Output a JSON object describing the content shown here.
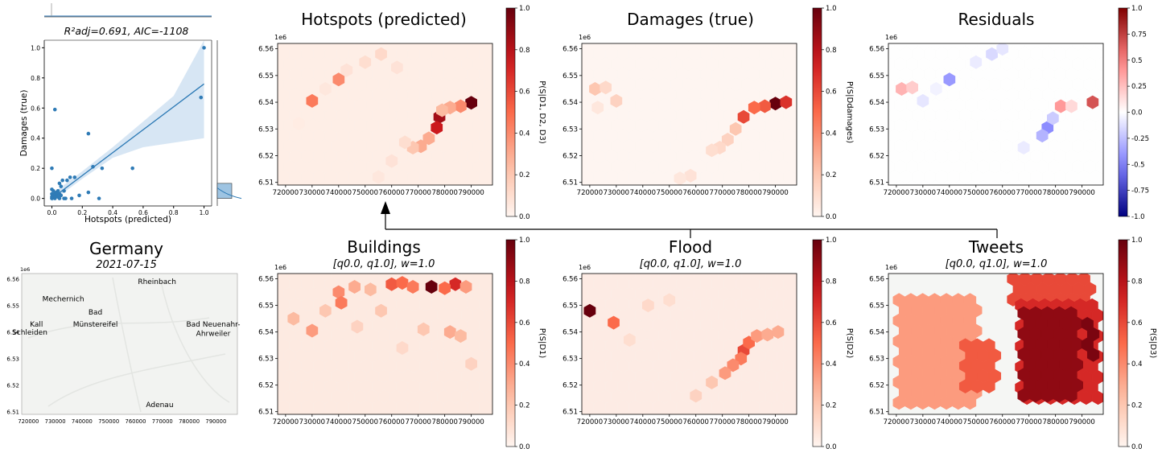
{
  "figure": {
    "connector_arrow": "arrow"
  },
  "scatter_panel": {
    "title": "R²adj=0.691, AIC=-1108",
    "xlabel": "Hotspots (predicted)",
    "ylabel": "Damages (true)"
  },
  "hex_panels": [
    {
      "id": "hotspots",
      "title": "Hotspots (predicted)",
      "subtitle": "",
      "colorbar_label": "P(S|D1, D2, D3)",
      "cmap": "reds"
    },
    {
      "id": "damages",
      "title": "Damages (true)",
      "subtitle": "",
      "colorbar_label": "P(S|Ddamages)",
      "cmap": "reds"
    },
    {
      "id": "residuals",
      "title": "Residuals",
      "subtitle": "",
      "colorbar_label": "",
      "cmap": "bwr"
    },
    {
      "id": "buildings",
      "title": "Buildings",
      "subtitle": "[q0.0, q1.0], w=1.0",
      "colorbar_label": "P(S|D1)",
      "cmap": "reds"
    },
    {
      "id": "flood",
      "title": "Flood",
      "subtitle": "[q0.0, q1.0], w=1.0",
      "colorbar_label": "P(S|D2)",
      "cmap": "reds"
    },
    {
      "id": "tweets",
      "title": "Tweets",
      "subtitle": "[q0.0, q1.0], w=1.0",
      "colorbar_label": "P(S|D3)",
      "cmap": "reds"
    }
  ],
  "map_panel": {
    "title": "Germany",
    "subtitle": "2021-07-15",
    "offset_label": "1e6",
    "x_ticks": [
      "720000",
      "730000",
      "740000",
      "750000",
      "760000",
      "770000",
      "780000",
      "790000"
    ],
    "y_ticks": [
      "6.56",
      "6.55",
      "6.54",
      "6.53",
      "6.52",
      "6.51"
    ],
    "places": [
      {
        "name": "Rheinbach",
        "x": 768000,
        "y": 6558000
      },
      {
        "name": "Mechernich",
        "x": 733000,
        "y": 6551500
      },
      {
        "name": "Bad",
        "x": 745000,
        "y": 6546500
      },
      {
        "name": "Münstereifel",
        "x": 745000,
        "y": 6542000
      },
      {
        "name": "Kall",
        "x": 723000,
        "y": 6542000
      },
      {
        "name": "Schleiden",
        "x": 720500,
        "y": 6539000
      },
      {
        "name": "Bad Neuenahr-",
        "x": 789000,
        "y": 6542000
      },
      {
        "name": "Ahrweiler",
        "x": 789000,
        "y": 6538500
      },
      {
        "name": "Adenau",
        "x": 769000,
        "y": 6511800
      }
    ]
  },
  "chart_data": [
    {
      "id": "scatter",
      "type": "scatter",
      "title": "R²adj=0.691, AIC=-1108",
      "xlabel": "Hotspots (predicted)",
      "ylabel": "Damages (true)",
      "xlim": [
        -0.05,
        1.05
      ],
      "ylim": [
        -0.05,
        1.05
      ],
      "x_ticks": [
        0.0,
        0.2,
        0.4,
        0.6,
        0.8,
        1.0
      ],
      "y_ticks": [
        0.0,
        0.2,
        0.4,
        0.6,
        0.8,
        1.0
      ],
      "points": [
        [
          0.0,
          0.0
        ],
        [
          0.01,
          0.01
        ],
        [
          0.02,
          0.0
        ],
        [
          0.0,
          0.03
        ],
        [
          0.03,
          0.02
        ],
        [
          0.01,
          0.05
        ],
        [
          0.02,
          0.03
        ],
        [
          0.04,
          0.01
        ],
        [
          0.05,
          0.0
        ],
        [
          0.0,
          0.06
        ],
        [
          0.03,
          0.04
        ],
        [
          0.06,
          0.02
        ],
        [
          0.01,
          0.02
        ],
        [
          0.02,
          0.01
        ],
        [
          0.0,
          0.01
        ],
        [
          0.04,
          0.05
        ],
        [
          0.05,
          0.03
        ],
        [
          0.08,
          0.0
        ],
        [
          0.07,
          0.12
        ],
        [
          0.1,
          0.12
        ],
        [
          0.12,
          0.14
        ],
        [
          0.15,
          0.14
        ],
        [
          0.06,
          0.08
        ],
        [
          0.08,
          0.05
        ],
        [
          0.0,
          0.2
        ],
        [
          0.02,
          0.59
        ],
        [
          0.05,
          0.1
        ],
        [
          0.09,
          0.0
        ],
        [
          0.13,
          0.0
        ],
        [
          0.24,
          0.43
        ],
        [
          0.27,
          0.21
        ],
        [
          0.24,
          0.04
        ],
        [
          0.33,
          0.2
        ],
        [
          0.31,
          0.0
        ],
        [
          0.53,
          0.2
        ],
        [
          0.98,
          0.67
        ],
        [
          1.0,
          1.0
        ],
        [
          0.18,
          0.02
        ]
      ],
      "fit": {
        "x0": 0.0,
        "y0": 0.0,
        "x1": 1.0,
        "y1": 0.76
      },
      "ci": {
        "x": [
          0.0,
          0.2,
          0.4,
          0.6,
          0.8,
          1.0
        ],
        "lower": [
          -0.02,
          0.13,
          0.27,
          0.34,
          0.37,
          0.4
        ],
        "upper": [
          0.03,
          0.18,
          0.34,
          0.51,
          0.68,
          1.05
        ]
      },
      "marginal_y_bar": {
        "y_range": [
          0.0,
          0.1
        ]
      }
    },
    {
      "id": "hotspots",
      "type": "heatmap",
      "cmap": "reds",
      "offset_label": "1e6",
      "x_ticks": [
        720000,
        730000,
        740000,
        750000,
        760000,
        770000,
        780000,
        790000
      ],
      "y_ticks": [
        6.56,
        6.55,
        6.54,
        6.53,
        6.52,
        6.51
      ],
      "colorbar_ticks": [
        0.0,
        0.2,
        0.4,
        0.6,
        0.8,
        1.0
      ],
      "hexes": [
        [
          790000,
          6539800,
          1.0
        ],
        [
          778000,
          6534500,
          0.85
        ],
        [
          777000,
          6530500,
          0.75
        ],
        [
          786000,
          6538500,
          0.4
        ],
        [
          782000,
          6538000,
          0.3
        ],
        [
          779000,
          6537000,
          0.25
        ],
        [
          774000,
          6526500,
          0.3
        ],
        [
          771000,
          6523500,
          0.3
        ],
        [
          768000,
          6523000,
          0.2
        ],
        [
          730000,
          6540500,
          0.45
        ],
        [
          740000,
          6548500,
          0.4
        ],
        [
          756000,
          6558000,
          0.12
        ],
        [
          750000,
          6555000,
          0.1
        ],
        [
          743000,
          6552000,
          0.08
        ],
        [
          762000,
          6553000,
          0.08
        ],
        [
          765000,
          6525000,
          0.1
        ],
        [
          760000,
          6518000,
          0.08
        ],
        [
          755000,
          6512000,
          0.06
        ],
        [
          735000,
          6545000,
          0.06
        ],
        [
          725000,
          6532000,
          0.04
        ]
      ],
      "background": 0.04
    },
    {
      "id": "damages",
      "type": "heatmap",
      "cmap": "reds",
      "offset_label": "1e6",
      "x_ticks": [
        720000,
        730000,
        740000,
        750000,
        760000,
        770000,
        780000,
        790000
      ],
      "y_ticks": [
        6.56,
        6.55,
        6.54,
        6.53,
        6.52,
        6.51
      ],
      "colorbar_ticks": [
        0.0,
        0.2,
        0.4,
        0.6,
        0.8,
        1.0
      ],
      "hexes": [
        [
          790000,
          6539500,
          1.0
        ],
        [
          794000,
          6540000,
          0.67
        ],
        [
          786000,
          6538500,
          0.55
        ],
        [
          782000,
          6538000,
          0.5
        ],
        [
          778000,
          6534500,
          0.6
        ],
        [
          775000,
          6530000,
          0.2
        ],
        [
          772000,
          6526000,
          0.15
        ],
        [
          769000,
          6523000,
          0.12
        ],
        [
          766000,
          6522000,
          0.1
        ],
        [
          722000,
          6545000,
          0.2
        ],
        [
          726000,
          6545500,
          0.12
        ],
        [
          730000,
          6540500,
          0.15
        ],
        [
          758000,
          6512500,
          0.08
        ],
        [
          754000,
          6511500,
          0.06
        ],
        [
          723000,
          6538000,
          0.06
        ]
      ],
      "background": 0.0
    },
    {
      "id": "residuals",
      "type": "heatmap",
      "cmap": "bwr",
      "offset_label": "1e6",
      "x_ticks": [
        720000,
        730000,
        740000,
        750000,
        760000,
        770000,
        780000,
        790000
      ],
      "y_ticks": [
        6.56,
        6.55,
        6.54,
        6.53,
        6.52,
        6.51
      ],
      "colorbar_ticks": [
        -1.0,
        -0.75,
        -0.5,
        -0.25,
        0.0,
        0.25,
        0.5,
        0.75,
        1.0
      ],
      "hexes": [
        [
          794000,
          6540000,
          0.67
        ],
        [
          782000,
          6538500,
          0.4
        ],
        [
          722000,
          6545000,
          0.3
        ],
        [
          726000,
          6545500,
          0.2
        ],
        [
          740000,
          6548500,
          -0.4
        ],
        [
          777000,
          6530500,
          -0.45
        ],
        [
          775000,
          6527500,
          -0.3
        ],
        [
          779000,
          6534000,
          -0.2
        ],
        [
          756000,
          6558000,
          -0.15
        ],
        [
          760000,
          6560000,
          -0.1
        ],
        [
          750000,
          6555000,
          -0.08
        ],
        [
          730000,
          6540500,
          -0.1
        ],
        [
          786000,
          6538500,
          0.15
        ],
        [
          768000,
          6523000,
          -0.08
        ],
        [
          735000,
          6545000,
          -0.05
        ]
      ],
      "background": 0.0
    },
    {
      "id": "buildings",
      "type": "heatmap",
      "cmap": "reds",
      "offset_label": "1e6",
      "x_ticks": [
        720000,
        730000,
        740000,
        750000,
        760000,
        770000,
        780000,
        790000
      ],
      "y_ticks": [
        6.56,
        6.55,
        6.54,
        6.53,
        6.52,
        6.51
      ],
      "colorbar_ticks": [
        0.0,
        0.2,
        0.4,
        0.6,
        0.8,
        1.0
      ],
      "hexes": [
        [
          775000,
          6557000,
          1.0
        ],
        [
          784000,
          6558000,
          0.7
        ],
        [
          760000,
          6558000,
          0.55
        ],
        [
          764000,
          6558500,
          0.5
        ],
        [
          768000,
          6557000,
          0.45
        ],
        [
          780000,
          6556500,
          0.5
        ],
        [
          788000,
          6557000,
          0.35
        ],
        [
          740000,
          6555000,
          0.4
        ],
        [
          741000,
          6551000,
          0.45
        ],
        [
          746000,
          6557000,
          0.3
        ],
        [
          752000,
          6556000,
          0.25
        ],
        [
          730000,
          6540500,
          0.35
        ],
        [
          723000,
          6545000,
          0.25
        ],
        [
          735000,
          6548000,
          0.2
        ],
        [
          756000,
          6548000,
          0.2
        ],
        [
          782000,
          6540000,
          0.3
        ],
        [
          786000,
          6538500,
          0.25
        ],
        [
          772000,
          6541000,
          0.2
        ],
        [
          747000,
          6542000,
          0.15
        ],
        [
          764000,
          6534000,
          0.12
        ],
        [
          790000,
          6528000,
          0.15
        ]
      ],
      "background": 0.06
    },
    {
      "id": "flood",
      "type": "heatmap",
      "cmap": "reds",
      "offset_label": "1e6",
      "x_ticks": [
        720000,
        730000,
        740000,
        750000,
        760000,
        770000,
        780000,
        790000
      ],
      "y_ticks": [
        6.56,
        6.55,
        6.54,
        6.53,
        6.52,
        6.51
      ],
      "colorbar_ticks": [
        0.0,
        0.2,
        0.4,
        0.6,
        0.8,
        1.0
      ],
      "hexes": [
        [
          720000,
          6548000,
          1.0
        ],
        [
          729000,
          6543500,
          0.5
        ],
        [
          778000,
          6533000,
          0.6
        ],
        [
          780000,
          6536000,
          0.5
        ],
        [
          777000,
          6530000,
          0.45
        ],
        [
          774000,
          6527500,
          0.4
        ],
        [
          771000,
          6524500,
          0.35
        ],
        [
          783000,
          6538500,
          0.35
        ],
        [
          787000,
          6539000,
          0.3
        ],
        [
          791000,
          6540000,
          0.3
        ],
        [
          766000,
          6521000,
          0.2
        ],
        [
          760000,
          6516000,
          0.15
        ],
        [
          742000,
          6550000,
          0.12
        ],
        [
          750000,
          6552000,
          0.1
        ],
        [
          735000,
          6537000,
          0.1
        ]
      ],
      "background": 0.05
    },
    {
      "id": "tweets",
      "type": "heatmap",
      "cmap": "reds",
      "offset_label": "1e6",
      "x_ticks": [
        720000,
        730000,
        740000,
        750000,
        760000,
        770000,
        780000,
        790000
      ],
      "y_ticks": [
        6.56,
        6.55,
        6.54,
        6.53,
        6.52,
        6.51
      ],
      "colorbar_ticks": [
        0.0,
        0.2,
        0.4,
        0.6,
        0.8,
        1.0
      ],
      "regions": [
        {
          "x": [
            721000,
            752000
          ],
          "y": [
            6512000,
            6552000
          ],
          "value": 0.35
        },
        {
          "x": [
            746000,
            756000
          ],
          "y": [
            6519000,
            6535000
          ],
          "value": 0.55
        },
        {
          "x": [
            764000,
            795000
          ],
          "y": [
            6550000,
            6560000
          ],
          "value": 0.6
        },
        {
          "x": [
            767000,
            797000
          ],
          "y": [
            6513000,
            6550000
          ],
          "value": 0.7
        },
        {
          "x": [
            768000,
            786000
          ],
          "y": [
            6515000,
            6547000
          ],
          "value": 0.9
        },
        {
          "x": [
            792000,
            796000
          ],
          "y": [
            6528000,
            6543000
          ],
          "value": 0.95
        }
      ],
      "background": -1
    }
  ]
}
